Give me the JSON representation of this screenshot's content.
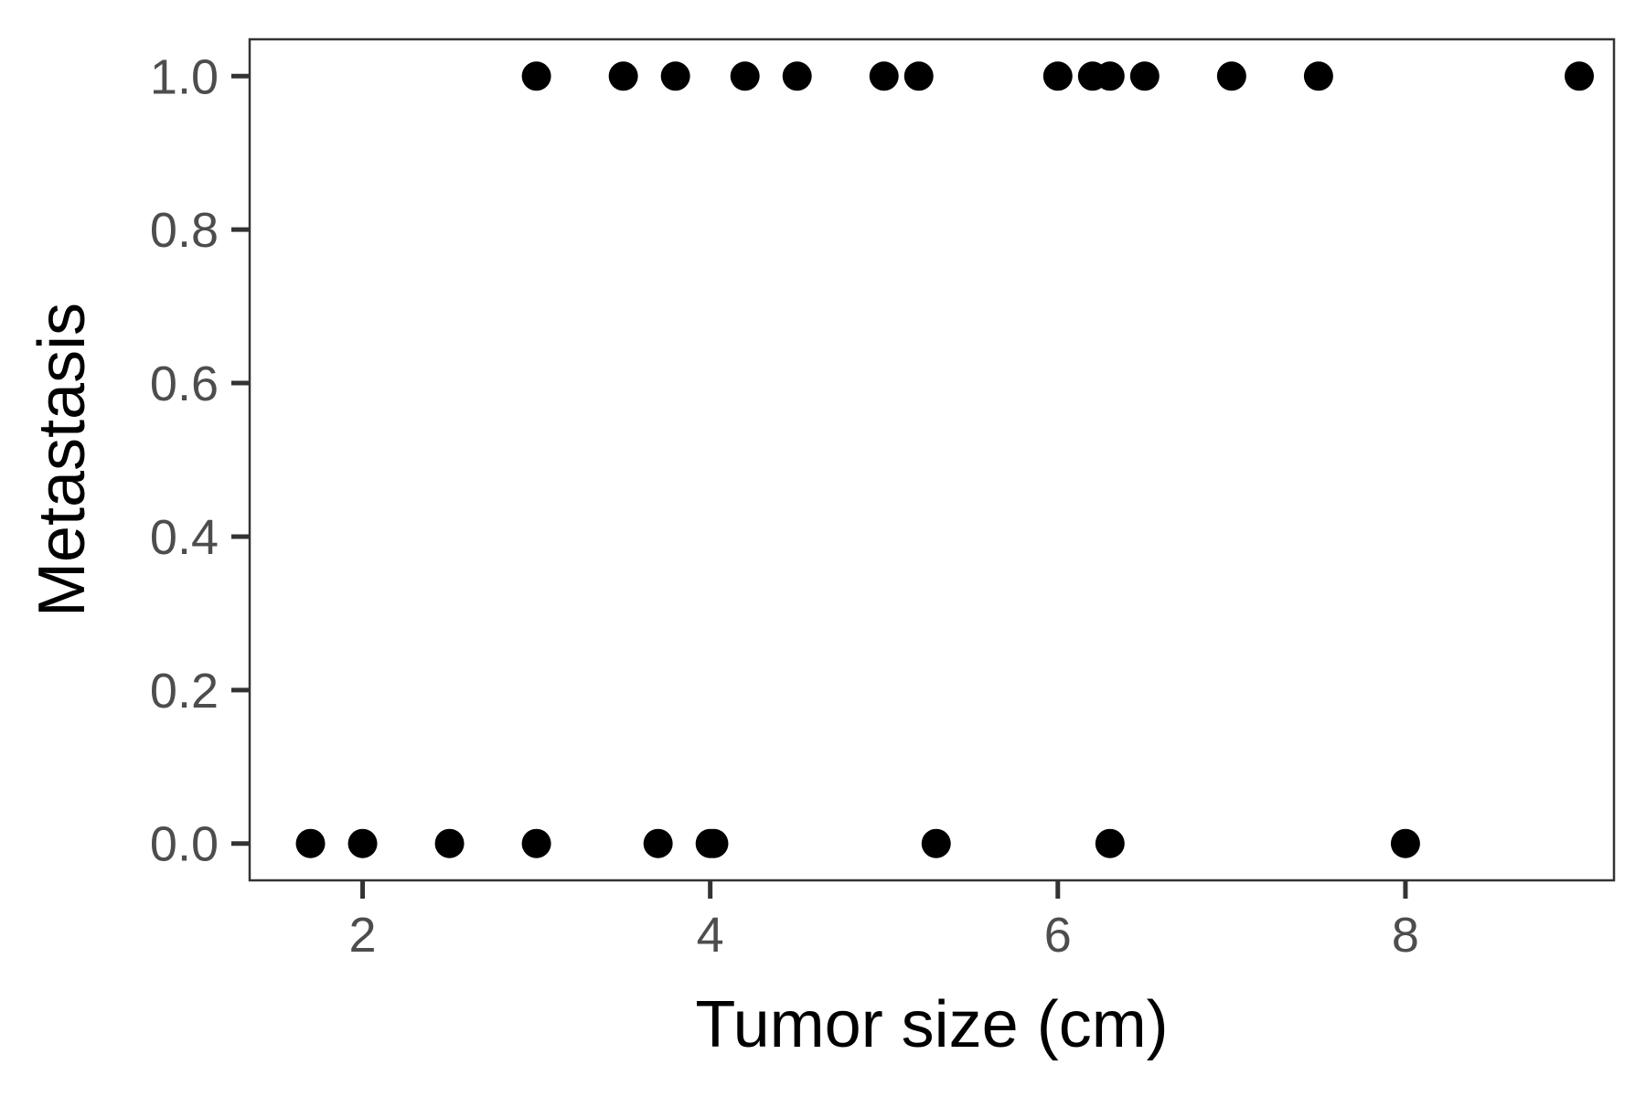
{
  "chart_data": {
    "type": "scatter",
    "title": "",
    "xlabel": "Tumor size (cm)",
    "ylabel": "Metastasis",
    "xlim": [
      1.35,
      9.2
    ],
    "ylim": [
      -0.048,
      1.048
    ],
    "x_ticks": [
      {
        "value": 2,
        "label": "2"
      },
      {
        "value": 4,
        "label": "4"
      },
      {
        "value": 6,
        "label": "6"
      },
      {
        "value": 8,
        "label": "8"
      }
    ],
    "y_ticks": [
      {
        "value": 0.0,
        "label": "0.0"
      },
      {
        "value": 0.2,
        "label": "0.2"
      },
      {
        "value": 0.4,
        "label": "0.4"
      },
      {
        "value": 0.6,
        "label": "0.6"
      },
      {
        "value": 0.8,
        "label": "0.8"
      },
      {
        "value": 1.0,
        "label": "1.0"
      }
    ],
    "grid": false,
    "legend": "none",
    "point_color": "#000000",
    "points": [
      {
        "x": 1.7,
        "y": 0
      },
      {
        "x": 2.0,
        "y": 0
      },
      {
        "x": 2.5,
        "y": 0
      },
      {
        "x": 3.0,
        "y": 0
      },
      {
        "x": 3.7,
        "y": 0
      },
      {
        "x": 4.0,
        "y": 0
      },
      {
        "x": 4.02,
        "y": 0
      },
      {
        "x": 5.3,
        "y": 0
      },
      {
        "x": 6.3,
        "y": 0
      },
      {
        "x": 8.0,
        "y": 0
      },
      {
        "x": 3.0,
        "y": 1
      },
      {
        "x": 3.5,
        "y": 1
      },
      {
        "x": 3.8,
        "y": 1
      },
      {
        "x": 4.2,
        "y": 1
      },
      {
        "x": 4.5,
        "y": 1
      },
      {
        "x": 5.0,
        "y": 1
      },
      {
        "x": 5.2,
        "y": 1
      },
      {
        "x": 6.0,
        "y": 1
      },
      {
        "x": 6.2,
        "y": 1
      },
      {
        "x": 6.3,
        "y": 1
      },
      {
        "x": 6.5,
        "y": 1
      },
      {
        "x": 7.0,
        "y": 1
      },
      {
        "x": 7.5,
        "y": 1
      },
      {
        "x": 9.0,
        "y": 1
      }
    ]
  }
}
